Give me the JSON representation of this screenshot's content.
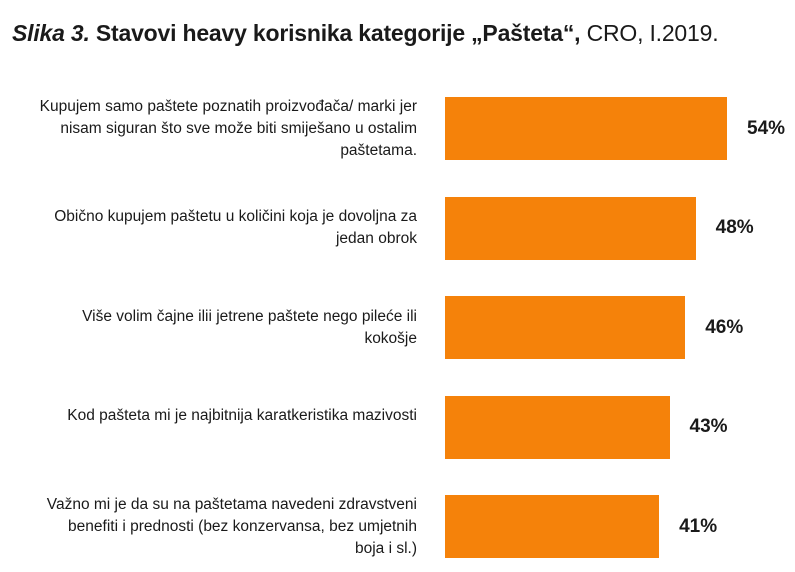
{
  "title": {
    "lead": "Slika 3.",
    "main": "Stavovi heavy korisnika kategorije „Pašteta“,",
    "tail": "CRO, I.2019."
  },
  "chart_data": {
    "type": "bar",
    "orientation": "horizontal",
    "categories": [
      "Kupujem samo paštete poznatih proizvođača/ marki jer nisam siguran što sve može biti smiješano u ostalim paštetama.",
      "Obično kupujem paštetu u količini koja je dovoljna za jedan obrok",
      "Više volim čajne ilii jetrene paštete nego pileće ili kokošje",
      "Kod pašteta mi je najbitnija karatkeristika mazivosti",
      "Važno mi je da su na paštetama navedeni zdravstveni benefiti i prednosti (bez konzervansa, bez umjetnih boja i sl.)"
    ],
    "values": [
      54,
      48,
      46,
      43,
      41
    ],
    "value_labels": [
      "54%",
      "48%",
      "46%",
      "43%",
      "41%"
    ],
    "unit": "%",
    "xlim": [
      0,
      100
    ],
    "grid": false,
    "legend": "none",
    "colors": {
      "bar": "#F5820A",
      "text": "#1a1a1a"
    }
  }
}
